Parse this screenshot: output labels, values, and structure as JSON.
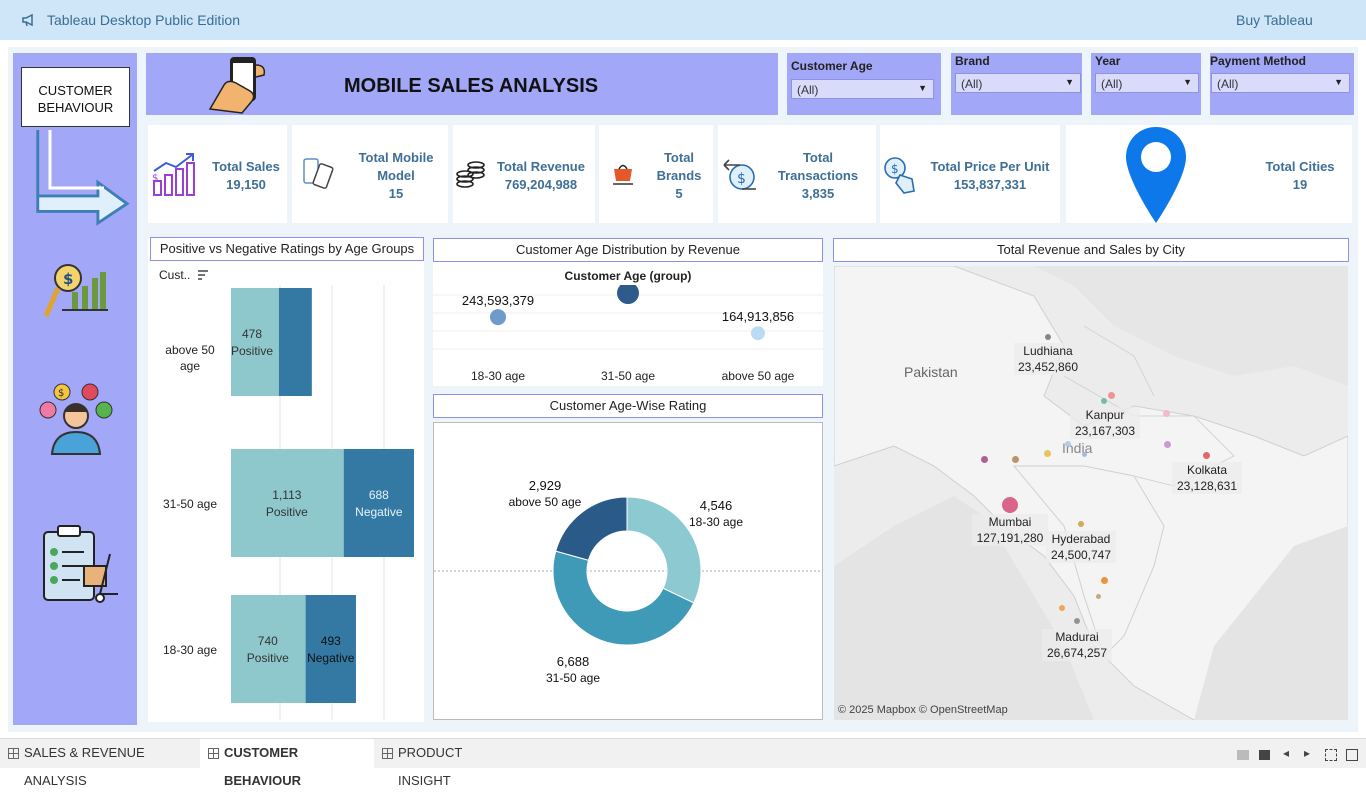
{
  "app": {
    "title": "Tableau Desktop Public Edition",
    "buy": "Buy Tableau"
  },
  "sidebar": {
    "current": "CUSTOMER\nBEHAVIOUR"
  },
  "header": {
    "title": "MOBILE SALES ANALYSIS"
  },
  "filters": [
    {
      "label": "Customer Age",
      "value": "(All)"
    },
    {
      "label": "Brand",
      "value": "(All)"
    },
    {
      "label": "Year",
      "value": "(All)"
    },
    {
      "label": "Payment Method",
      "value": "(All)"
    }
  ],
  "kpis": [
    {
      "label": "Total Sales",
      "value": "19,150",
      "icon": "bar-growth-icon"
    },
    {
      "label": "Total Mobile Model",
      "value": "15",
      "icon": "phones-icon"
    },
    {
      "label": "Total Revenue",
      "value": "769,204,988",
      "icon": "coins-icon"
    },
    {
      "label": "Total Brands",
      "value": "5",
      "icon": "company-icon"
    },
    {
      "label": "Total Transactions",
      "value": "3,835",
      "icon": "transaction-icon"
    },
    {
      "label": "Total Price Per Unit",
      "value": "153,837,331",
      "icon": "price-tag-icon"
    },
    {
      "label": "Total Cities",
      "value": "19",
      "icon": "map-pin-icon"
    }
  ],
  "ratings": {
    "title": "Positive vs Negative Ratings by Age Groups",
    "sort_label": "Cust..",
    "rows": [
      {
        "group": "above 50\nage",
        "positive": 478,
        "pos_label": "478\nPositive",
        "negative": null,
        "neg_label": ""
      },
      {
        "group": "31-50 age",
        "positive": 1113,
        "pos_label": "1,113\nPositive",
        "negative": 688,
        "neg_label": "688\nNegative"
      },
      {
        "group": "18-30 age",
        "positive": 740,
        "pos_label": "740\nPositive",
        "negative": 493,
        "neg_label": "493\nNegative"
      }
    ]
  },
  "age_dist": {
    "title": "Customer Age Distribution by Revenue",
    "header": "Customer Age (group)",
    "points": [
      {
        "label": "18-30 age",
        "value": "243,593,379",
        "color": "#6f9bcb"
      },
      {
        "label": "31-50 age",
        "value": "360,697,753",
        "color": "#2e5a8c"
      },
      {
        "label": "above 50 age",
        "value": "164,913,856",
        "color": "#b9dcf3"
      }
    ]
  },
  "age_rating": {
    "title": "Customer Age-Wise Rating",
    "slices": [
      {
        "label": "18-30 age",
        "value": 4546,
        "text": "4,546",
        "color": "#8cc9d1"
      },
      {
        "label": "31-50 age",
        "value": 6688,
        "text": "6,688",
        "color": "#3f9ab8"
      },
      {
        "label": "above 50 age",
        "value": 2929,
        "text": "2,929",
        "color": "#2a5a88"
      }
    ]
  },
  "city_map": {
    "title": "Total Revenue and Sales by City",
    "credit": "© 2025 Mapbox © OpenStreetMap",
    "country1": "Pakistan",
    "country2": "India",
    "cities": [
      {
        "name": "Ludhiana",
        "value": "23,452,860"
      },
      {
        "name": "Kanpur",
        "value": "23,167,303"
      },
      {
        "name": "Kolkata",
        "value": "23,128,631"
      },
      {
        "name": "Mumbai",
        "value": "127,191,280"
      },
      {
        "name": "Hyderabad",
        "value": "24,500,747"
      },
      {
        "name": "Madurai",
        "value": "26,674,257"
      }
    ]
  },
  "tabs": [
    {
      "label": "SALES & REVENUE ANALYSIS"
    },
    {
      "label": "CUSTOMER BEHAVIOUR"
    },
    {
      "label": "PRODUCT INSIGHT"
    }
  ]
}
